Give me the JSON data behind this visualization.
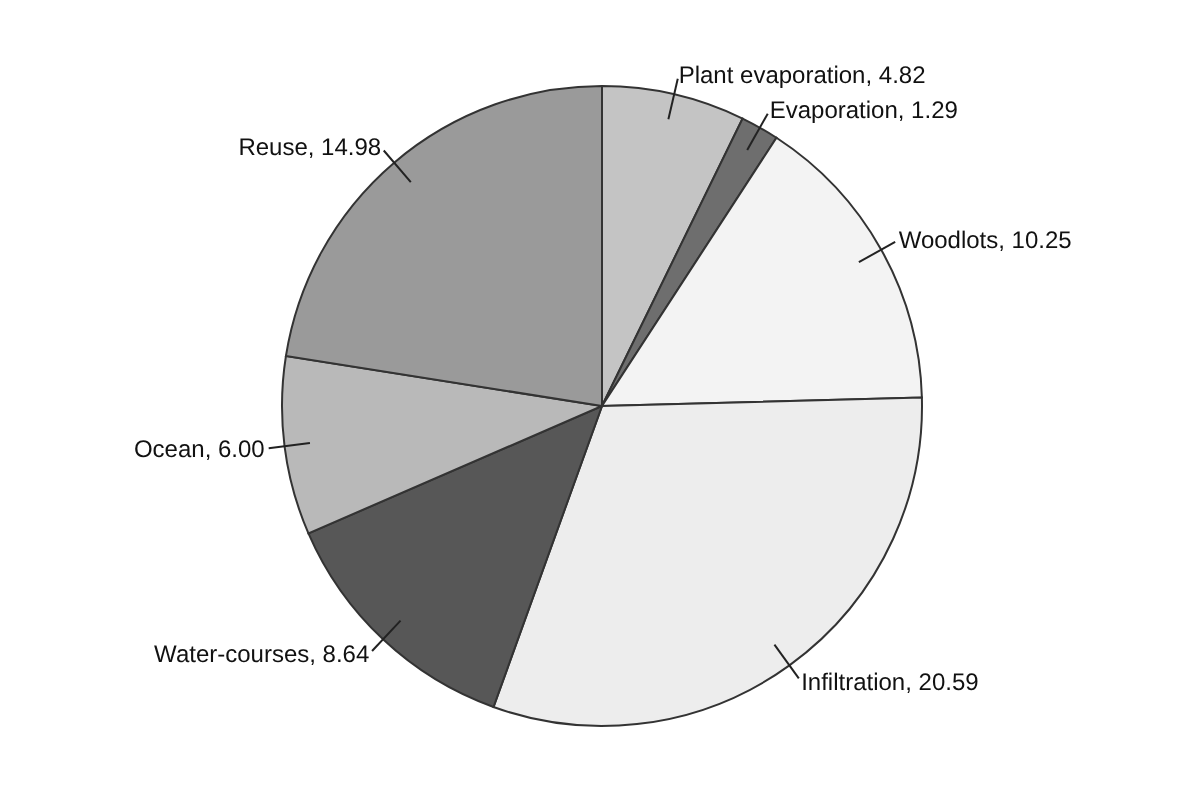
{
  "chart_data": {
    "type": "pie",
    "categories": [
      "Plant evaporation",
      "Evaporation",
      "Woodlots",
      "Infiltration",
      "Water-courses",
      "Ocean",
      "Reuse"
    ],
    "values": [
      4.82,
      1.29,
      10.25,
      20.59,
      8.64,
      6.0,
      14.98
    ],
    "colors": [
      "#c4c4c4",
      "#6e6e6e",
      "#f3f3f3",
      "#ededed",
      "#575757",
      "#b9b9b9",
      "#9a9a9a"
    ],
    "value_labels": [
      "4.82",
      "1.29",
      "10.25",
      "20.59",
      "8.64",
      "6.00",
      "14.98"
    ]
  }
}
